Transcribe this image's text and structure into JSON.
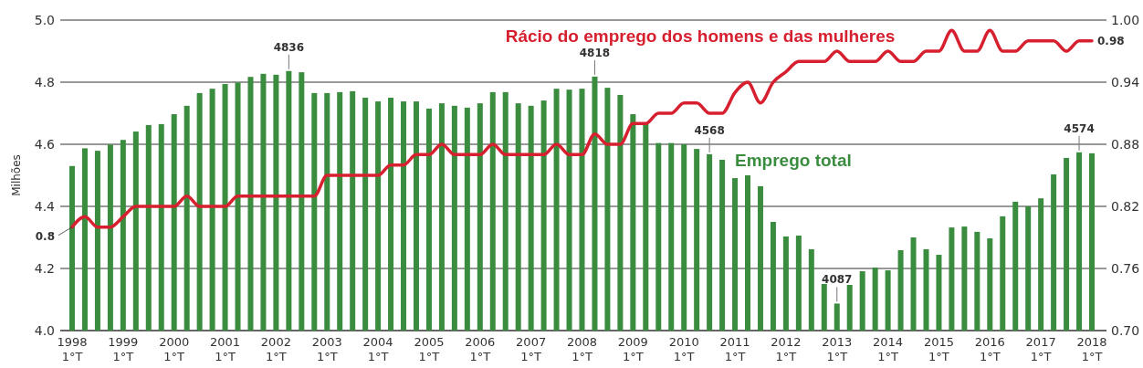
{
  "chart_data": {
    "type": "bar",
    "ylabel": "Milhões",
    "categories": [
      "1998\n1°T",
      null,
      null,
      null,
      "1999\n1°T",
      null,
      null,
      null,
      "2000\n1°T",
      null,
      null,
      null,
      "2001\n1°T",
      null,
      null,
      null,
      "2002\n1°T",
      null,
      null,
      null,
      "2003\n1°T",
      null,
      null,
      null,
      "2004\n1°T",
      null,
      null,
      null,
      "2005\n1°T",
      null,
      null,
      null,
      "2006\n1°T",
      null,
      null,
      null,
      "2007\n1°T",
      null,
      null,
      null,
      "2008\n1°T",
      null,
      null,
      null,
      "2009\n1°T",
      null,
      null,
      null,
      "2010\n1°T",
      null,
      null,
      null,
      "2011\n1°T",
      null,
      null,
      null,
      "2012\n1°T",
      null,
      null,
      null,
      "2013\n1°T",
      null,
      null,
      null,
      "2014\n1°T",
      null,
      null,
      null,
      "2015\n1°T",
      null,
      null,
      null,
      "2016\n1°T",
      null,
      null,
      null,
      "2017\n1°T",
      null,
      null,
      null,
      "2018\n1°T"
    ],
    "series": [
      {
        "name": "Emprego total",
        "color": "#3a8c3f",
        "values": [
          4.53,
          4.587,
          4.579,
          4.599,
          4.614,
          4.641,
          4.662,
          4.665,
          4.697,
          4.724,
          4.765,
          4.779,
          4.794,
          4.799,
          4.817,
          4.827,
          4.824,
          4.836,
          4.832,
          4.765,
          4.765,
          4.768,
          4.771,
          4.75,
          4.738,
          4.75,
          4.738,
          4.738,
          4.715,
          4.732,
          4.724,
          4.718,
          4.732,
          4.768,
          4.768,
          4.732,
          4.724,
          4.741,
          4.779,
          4.776,
          4.779,
          4.818,
          4.782,
          4.759,
          4.697,
          4.665,
          4.604,
          4.604,
          4.6,
          4.585,
          4.568,
          4.55,
          4.491,
          4.5,
          4.465,
          4.35,
          4.303,
          4.306,
          4.262,
          4.15,
          4.087,
          4.147,
          4.191,
          4.203,
          4.194,
          4.259,
          4.3,
          4.262,
          4.244,
          4.332,
          4.335,
          4.318,
          4.297,
          4.368,
          4.415,
          4.4,
          4.426,
          4.503,
          4.556,
          4.574,
          4.571
        ]
      },
      {
        "name": "Rácio do emprego dos homens e das mulheres",
        "type": "line",
        "axis": "y2",
        "color": "#d7202f",
        "values": [
          0.8,
          0.81,
          0.8,
          0.8,
          0.81,
          0.82,
          0.82,
          0.82,
          0.82,
          0.83,
          0.82,
          0.82,
          0.82,
          0.83,
          0.83,
          0.83,
          0.83,
          0.83,
          0.83,
          0.83,
          0.85,
          0.85,
          0.85,
          0.85,
          0.85,
          0.86,
          0.86,
          0.87,
          0.87,
          0.88,
          0.87,
          0.87,
          0.87,
          0.88,
          0.87,
          0.87,
          0.87,
          0.87,
          0.88,
          0.87,
          0.87,
          0.89,
          0.88,
          0.88,
          0.9,
          0.9,
          0.91,
          0.91,
          0.92,
          0.92,
          0.91,
          0.91,
          0.93,
          0.94,
          0.92,
          0.94,
          0.95,
          0.96,
          0.96,
          0.96,
          0.97,
          0.96,
          0.96,
          0.96,
          0.97,
          0.96,
          0.96,
          0.97,
          0.97,
          0.99,
          0.97,
          0.97,
          0.99,
          0.97,
          0.97,
          0.98,
          0.98,
          0.98,
          0.97,
          0.98,
          0.98
        ],
        "value_labels": [
          "0.8",
          null,
          null,
          null,
          null,
          null,
          null,
          null,
          null,
          null,
          null,
          null,
          null,
          null,
          null,
          null,
          null,
          null,
          null,
          null,
          null,
          null,
          null,
          null,
          null,
          null,
          null,
          null,
          null,
          null,
          null,
          null,
          null,
          null,
          null,
          null,
          null,
          null,
          null,
          null,
          null,
          null,
          null,
          null,
          null,
          null,
          null,
          null,
          null,
          null,
          null,
          null,
          null,
          null,
          null,
          null,
          null,
          null,
          null,
          null,
          null,
          null,
          null,
          null,
          null,
          null,
          null,
          null,
          null,
          null,
          null,
          null,
          null,
          null,
          null,
          null,
          null,
          null,
          null,
          null,
          "0.98"
        ]
      }
    ],
    "annotations": [
      {
        "text": "4836",
        "y": 4.836
      },
      {
        "text": "4818",
        "y": 4.818
      },
      {
        "text": "4568",
        "y": 4.568
      },
      {
        "text": "4087",
        "y": 4.087
      },
      {
        "text": "4574",
        "y": 4.574
      }
    ],
    "ylim": [
      4.0,
      5.0
    ],
    "yticks": [
      {
        "value": 4.0,
        "label": "4.0"
      },
      4.2,
      4.4,
      4.6,
      4.8,
      {
        "value": 5.0,
        "label": "5.0"
      }
    ],
    "y2lim": [
      0.7,
      1.0
    ],
    "y2ticks": [
      {
        "value": 0.7,
        "label": "0.70"
      },
      0.76,
      0.82,
      0.88,
      0.94,
      {
        "value": 1.0,
        "label": "1.00"
      }
    ],
    "grid": "y"
  }
}
